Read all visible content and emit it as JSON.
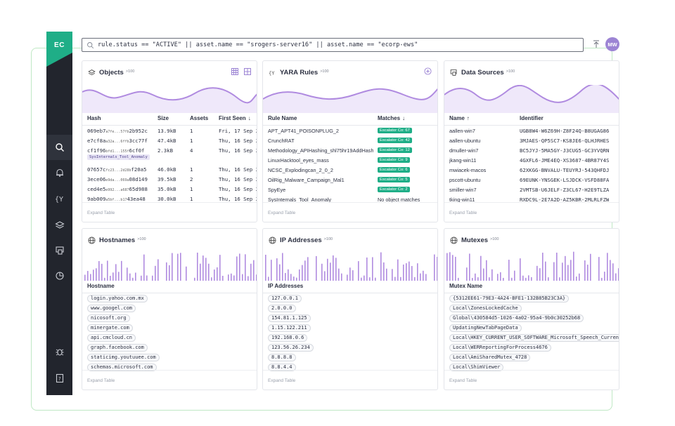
{
  "app": {
    "logo_text": "EC",
    "avatar_initials": "MW"
  },
  "search": {
    "query": "rule.status == \"ACTIVE\" || asset.name == \"srogers-server16\" || asset.name == \"ecorp-ews\""
  },
  "sidebar": {
    "items": [
      "search-icon",
      "bell-icon",
      "yara-icon",
      "layers-icon",
      "data-sources-icon",
      "pie-chart-icon",
      "bug-icon",
      "help-icon"
    ]
  },
  "expand_label": "Expand Table",
  "objects": {
    "title": "Objects",
    "count": ">100",
    "columns": [
      "Hash",
      "Size",
      "Assets",
      "First Seen"
    ],
    "rows": [
      {
        "hash_main": "069eb7",
        "hash_small": "a7fe...57fb",
        "hash_end": "2b952c",
        "size": "13.9kB",
        "assets": "1",
        "first_seen": "Fri, 17 Sep 2"
      },
      {
        "hash_main": "e7cf8a",
        "hash_small": "a32a...6ffb",
        "hash_end": "3cc77f",
        "size": "47.4kB",
        "assets": "1",
        "first_seen": "Thu, 16 Sep 2"
      },
      {
        "hash_main": "cf1f96",
        "hash_small": "bfd1...155f",
        "hash_end": "6cf0f",
        "size": "2.3kB",
        "assets": "4",
        "first_seen": "Thu, 16 Sep 2",
        "tag": "SysInternals_Tool_Anomaly"
      },
      {
        "hash_main": "07657c",
        "hash_small": "fc23...2d28b",
        "hash_end": "f20a5",
        "size": "46.0kB",
        "assets": "1",
        "first_seen": "Thu, 16 Sep 2"
      },
      {
        "hash_main": "3ece06",
        "hash_small": "e9da...069a",
        "hash_end": "08d149",
        "size": "39.5kB",
        "assets": "2",
        "first_seen": "Thu, 16 Sep 2"
      },
      {
        "hash_main": "ced4e5",
        "hash_small": "e992...a687",
        "hash_end": "65d988",
        "size": "35.0kB",
        "assets": "1",
        "first_seen": "Thu, 16 Sep 2"
      },
      {
        "hash_main": "9ab009",
        "hash_small": "a5bf...b17",
        "hash_end": "43ea48",
        "size": "30.0kB",
        "assets": "1",
        "first_seen": "Thu, 16 Sep 2"
      }
    ]
  },
  "yara": {
    "title": "YARA Rules",
    "count": ">100",
    "columns": [
      "Rule Name",
      "Matches"
    ],
    "rows": [
      {
        "name": "APT_APT41_POISONPLUG_2",
        "match": "Escalator Co: 67",
        "badge": true
      },
      {
        "name": "CrunchRAT",
        "match": "Escalator Co: 42",
        "badge": true
      },
      {
        "name": "Methodology_APIHashing_shl75hr19AddHash",
        "match": "Escalator Co: 12",
        "badge": true
      },
      {
        "name": "LinuxHacktool_eyes_mass",
        "match": "Escalator Co: 9",
        "badge": true
      },
      {
        "name": "NCSC_Explodingcan_2_0_2",
        "match": "Escalator Co: 6",
        "badge": true
      },
      {
        "name": "OilRig_Malware_Campaign_Mal1",
        "match": "Escalator Co: 5",
        "badge": true
      },
      {
        "name": "SpyEye",
        "match": "Escalator Co: 2",
        "badge": true
      },
      {
        "name": "SysInternals_Tool_Anomaly",
        "match": "No object matches",
        "badge": false
      }
    ]
  },
  "datasources": {
    "title": "Data Sources",
    "count": ">100",
    "columns": [
      "Name",
      "Identifier"
    ],
    "rows": [
      {
        "name": "aallen-win7",
        "id": "UGB8W4-W6Z69H-Z8F24Q-B8UGAG86"
      },
      {
        "name": "aallen-ubuntu",
        "id": "3MJAES-QP5SC7-KS8JE6-QLHJRHES"
      },
      {
        "name": "dmuller-win7",
        "id": "BC5JYJ-5MA5GY-J3CUG5-GC3YVQRN"
      },
      {
        "name": "jkang-win11",
        "id": "4GXFL6-JME4EQ-XS3687-4BR87Y4S"
      },
      {
        "name": "mwiacek-macos",
        "id": "62XKGG-BNVALU-TEUYRJ-543QHFDJ"
      },
      {
        "name": "pscott-ubuntu",
        "id": "69EUNK-YNSGEK-LSJDCK-VSFD88FA"
      },
      {
        "name": "smiller-win7",
        "id": "2VMTSB-U6JELF-Z3CL67-H2E9TLZA"
      },
      {
        "name": "tking-win11",
        "id": "RXDC9L-2E7A2D-AZ5KBR-2MLRLFZW"
      }
    ]
  },
  "hostnames": {
    "title": "Hostnames",
    "count": ">100",
    "column": "Hostname",
    "items": [
      "login.yahoo.com.mx",
      "www.googel.com",
      "nicosoft.org",
      "minergate.com",
      "api.cmcloud.cn",
      "graph.facebook.com",
      "staticimg.youtuuee.com",
      "schemas.microsoft.com"
    ]
  },
  "ips": {
    "title": "IP Addresses",
    "count": ">100",
    "column": "IP Addresses",
    "items": [
      "127.0.0.1",
      "2.0.0.0",
      "154.81.1.125",
      "1.15.122.211",
      "192.168.0.6",
      "123.56.26.234",
      "8.8.8.8",
      "8.8.4.4"
    ]
  },
  "mutexes": {
    "title": "Mutexes",
    "count": ">100",
    "column": "Mutex Name",
    "items": [
      "{5312EE61-79E3-4A24-BFE1-132B85B23C3A}",
      "Local\\ZonesLockedCache",
      "Global\\430584d5-1026-4a02-95a4-9b0c30252b68",
      "UpdatingNewTabPageData",
      "Local\\HKEY_CURRENT_USER_SOFTWARE_Microsoft_Speech_Current",
      "Local\\WERReportingForProcess4676",
      "Local\\AmiSharedMutex_4728",
      "Local\\ShimViewer"
    ]
  },
  "colors": {
    "accent": "#1fae87",
    "chart": "#b08be0",
    "sidebar": "#22252d"
  }
}
